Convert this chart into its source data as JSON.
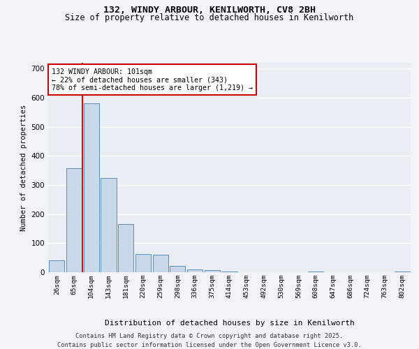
{
  "title_line1": "132, WINDY ARBOUR, KENILWORTH, CV8 2BH",
  "title_line2": "Size of property relative to detached houses in Kenilworth",
  "xlabel": "Distribution of detached houses by size in Kenilworth",
  "ylabel": "Number of detached properties",
  "bar_labels": [
    "26sqm",
    "65sqm",
    "104sqm",
    "143sqm",
    "181sqm",
    "220sqm",
    "259sqm",
    "298sqm",
    "336sqm",
    "375sqm",
    "414sqm",
    "453sqm",
    "492sqm",
    "530sqm",
    "569sqm",
    "608sqm",
    "647sqm",
    "686sqm",
    "724sqm",
    "763sqm",
    "802sqm"
  ],
  "bar_values": [
    42,
    358,
    580,
    325,
    165,
    62,
    60,
    22,
    10,
    7,
    3,
    0,
    0,
    0,
    0,
    2,
    0,
    0,
    0,
    0,
    3
  ],
  "bar_color": "#c8d8e8",
  "bar_edge_color": "#5b8db8",
  "background_color": "#e8eef4",
  "grid_color": "#ffffff",
  "red_line_x": 1.5,
  "annotation_text": "132 WINDY ARBOUR: 101sqm\n← 22% of detached houses are smaller (343)\n78% of semi-detached houses are larger (1,219) →",
  "annotation_box_color": "#ffffff",
  "annotation_box_edge": "#cc0000",
  "footer_line1": "Contains HM Land Registry data © Crown copyright and database right 2025.",
  "footer_line2": "Contains public sector information licensed under the Open Government Licence v3.0.",
  "fig_bg_color": "#f0f4f8",
  "ylim": [
    0,
    720
  ],
  "yticks": [
    0,
    100,
    200,
    300,
    400,
    500,
    600,
    700
  ]
}
